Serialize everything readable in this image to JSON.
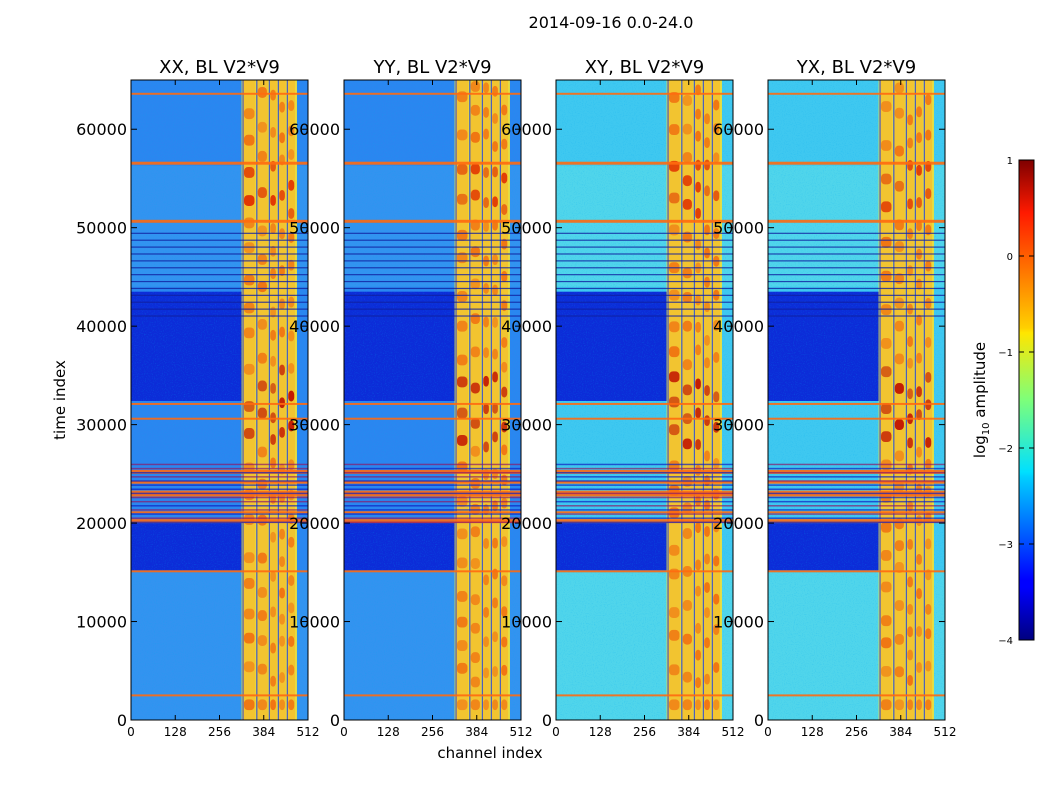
{
  "chart_data": {
    "type": "heatmap",
    "suptitle": "2014-09-16 0.0-24.0",
    "xlabel": "channel index",
    "ylabel": "time index",
    "xlim": [
      0,
      512
    ],
    "ylim": [
      0,
      65000
    ],
    "xticks": [
      0,
      128,
      256,
      384,
      512
    ],
    "yticks": [
      0,
      10000,
      20000,
      30000,
      40000,
      50000,
      60000
    ],
    "colormap": "jet",
    "panels": [
      {
        "title": "XX, BL V2*V9",
        "id": "xx"
      },
      {
        "title": "YY, BL V2*V9",
        "id": "yy"
      },
      {
        "title": "XY, BL V2*V9",
        "id": "xy"
      },
      {
        "title": "YX, BL V2*V9",
        "id": "yx"
      }
    ],
    "rfi_band_channels": [
      {
        "start": 324,
        "end": 360
      },
      {
        "start": 364,
        "end": 396
      },
      {
        "start": 400,
        "end": 422
      },
      {
        "start": 426,
        "end": 448
      },
      {
        "start": 452,
        "end": 475
      }
    ],
    "flagged_time_bands": [
      [
        2400,
        2600
      ],
      [
        15000,
        15200
      ],
      [
        20000,
        20400
      ],
      [
        21000,
        21200
      ],
      [
        22700,
        23300
      ],
      [
        24000,
        24300
      ],
      [
        25000,
        25400
      ],
      [
        30500,
        30700
      ],
      [
        32000,
        32200
      ],
      [
        50500,
        50800
      ],
      [
        56400,
        56700
      ],
      [
        63500,
        63700
      ]
    ],
    "colorbar": {
      "label_prefix": "log",
      "label_sub": "10",
      "label_suffix": " amplitude",
      "min": -4,
      "max": 1,
      "ticks": [
        1,
        0,
        -1,
        -2,
        -3,
        -4
      ],
      "tick_labels": [
        "1",
        "0",
        "−1",
        "−2",
        "−3",
        "−4"
      ]
    }
  }
}
